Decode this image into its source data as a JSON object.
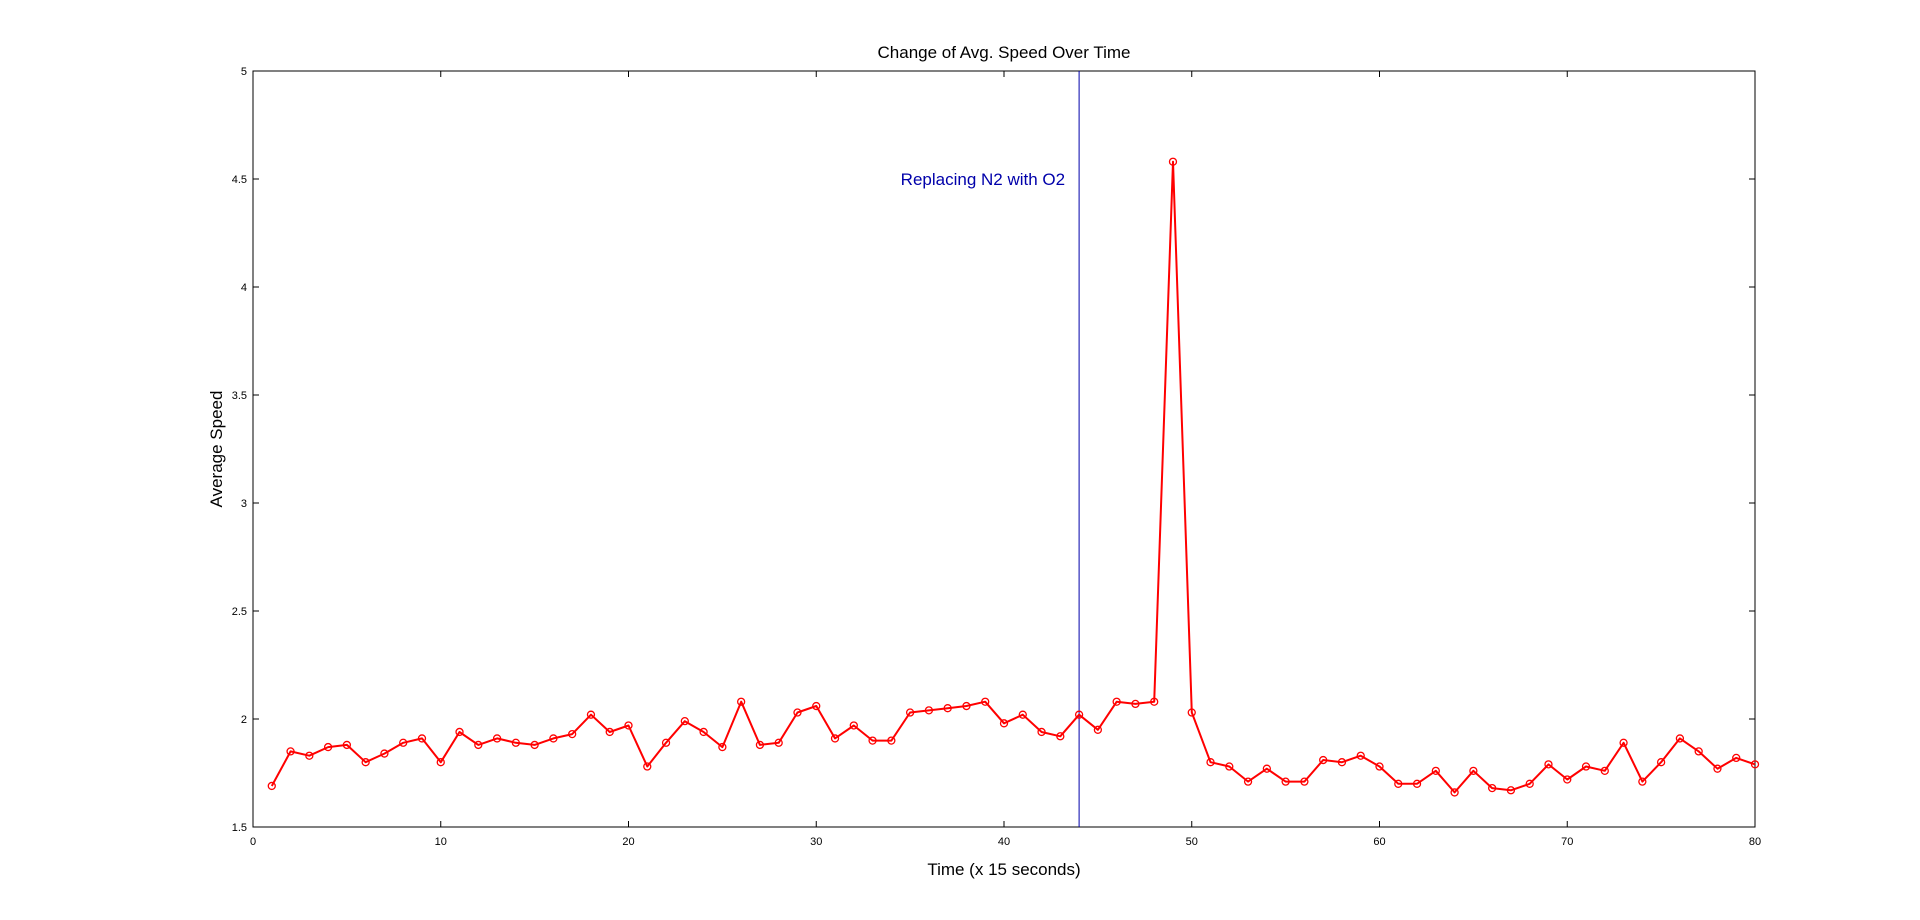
{
  "chart_data": {
    "type": "line",
    "title": "Change of Avg. Speed Over Time",
    "xlabel": "Time (x 15 seconds)",
    "ylabel": "Average Speed",
    "xlim": [
      0,
      80
    ],
    "ylim": [
      1.5,
      5
    ],
    "xticks": [
      0,
      10,
      20,
      30,
      40,
      50,
      60,
      70,
      80
    ],
    "yticks": [
      1.5,
      2,
      2.5,
      3,
      3.5,
      4,
      4.5,
      5
    ],
    "grid": false,
    "series": [
      {
        "color": "#ff0000",
        "marker": "circle",
        "x": [
          1,
          2,
          3,
          4,
          5,
          6,
          7,
          8,
          9,
          10,
          11,
          12,
          13,
          14,
          15,
          16,
          17,
          18,
          19,
          20,
          21,
          22,
          23,
          24,
          25,
          26,
          27,
          28,
          29,
          30,
          31,
          32,
          33,
          34,
          35,
          36,
          37,
          38,
          39,
          40,
          41,
          42,
          43,
          44,
          45,
          46,
          47,
          48,
          49,
          50,
          51,
          52,
          53,
          54,
          55,
          56,
          57,
          58,
          59,
          60,
          61,
          62,
          63,
          64,
          65,
          66,
          67,
          68,
          69,
          70,
          71,
          72,
          73,
          74,
          75,
          76,
          77,
          78,
          79,
          80
        ],
        "y": [
          1.69,
          1.85,
          1.83,
          1.87,
          1.88,
          1.8,
          1.84,
          1.89,
          1.91,
          1.8,
          1.94,
          1.88,
          1.91,
          1.89,
          1.88,
          1.91,
          1.93,
          2.02,
          1.94,
          1.97,
          1.78,
          1.89,
          1.99,
          1.94,
          1.87,
          2.08,
          1.88,
          1.89,
          2.03,
          2.06,
          1.91,
          1.97,
          1.9,
          1.9,
          2.03,
          2.04,
          2.05,
          2.06,
          2.08,
          1.98,
          2.02,
          1.94,
          1.92,
          2.02,
          1.95,
          2.08,
          2.07,
          2.08,
          4.58,
          2.03,
          1.8,
          1.78,
          1.71,
          1.77,
          1.71,
          1.71,
          1.81,
          1.8,
          1.83,
          1.78,
          1.7,
          1.7,
          1.76,
          1.66,
          1.76,
          1.68,
          1.67,
          1.7,
          1.79,
          1.72,
          1.78,
          1.76,
          1.89,
          1.71,
          1.8,
          1.91,
          1.85,
          1.77,
          1.82,
          1.79
        ]
      }
    ],
    "annotations": [
      {
        "type": "vline",
        "x": 44,
        "color": "#0000aa"
      },
      {
        "type": "text",
        "text": "Replacing N2 with O2",
        "x": 44,
        "y": 4.5,
        "color": "#0000aa"
      }
    ]
  }
}
